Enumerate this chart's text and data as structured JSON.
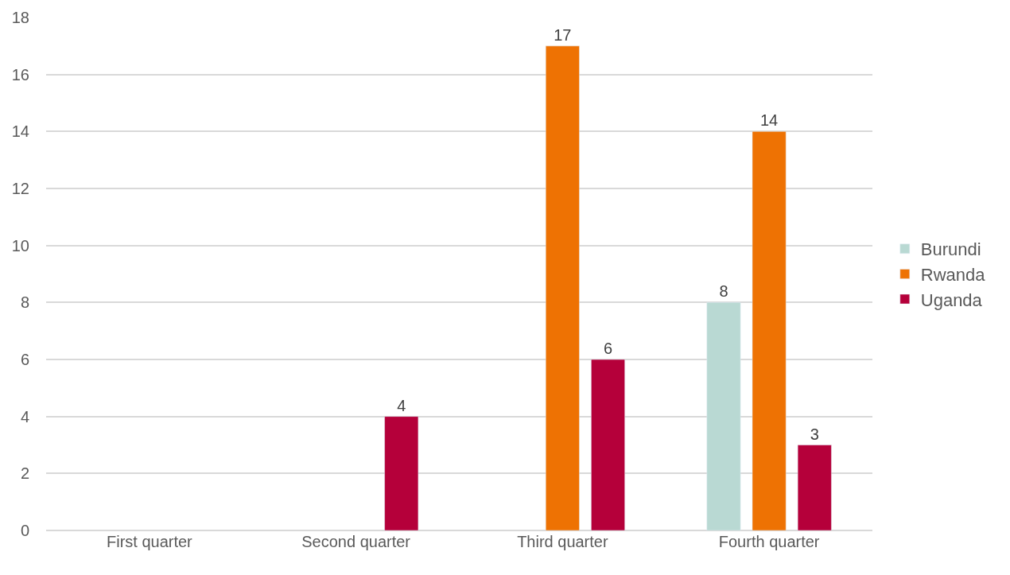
{
  "chart_data": {
    "type": "bar",
    "categories": [
      "First quarter",
      "Second quarter",
      "Third quarter",
      "Fourth quarter"
    ],
    "series": [
      {
        "name": "Burundi",
        "color": "#b9d9d3",
        "values": [
          null,
          null,
          null,
          8
        ]
      },
      {
        "name": "Rwanda",
        "color": "#ee7203",
        "values": [
          null,
          null,
          17,
          14
        ]
      },
      {
        "name": "Uganda",
        "color": "#b5003a",
        "values": [
          null,
          4,
          6,
          3
        ]
      }
    ],
    "ylim": [
      0,
      18
    ],
    "yticks": [
      0,
      2,
      4,
      6,
      8,
      10,
      12,
      14,
      16,
      18
    ],
    "grid": "y",
    "legend": "right",
    "data_labels": true
  }
}
